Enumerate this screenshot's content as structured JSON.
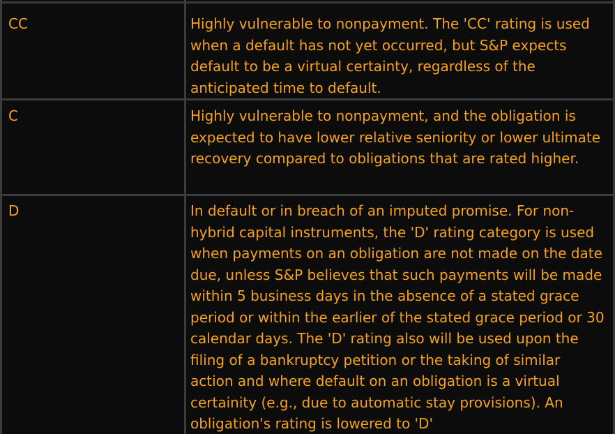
{
  "rating_table": {
    "rows": [
      {
        "code": "CC",
        "description": "Highly vulnerable to nonpayment. The 'CC' rating is used when a default has not yet occurred, but S&P expects default to be a virtual certainty, regardless of the anticipated time to default."
      },
      {
        "code": "C",
        "description": "Highly vulnerable to nonpayment, and the obligation is expected to have lower relative seniority or lower ultimate recovery compared to obligations that are rated higher."
      },
      {
        "code": "D",
        "description": "In default or in breach of an imputed promise. For non-hybrid capital instruments, the 'D' rating category is used when payments on an obligation are not made on the date due, unless S&P believes that such payments will be made within 5 business days in the absence of a stated grace period or within the earlier of the stated grace period or 30 calendar days. The 'D' rating also will be used upon the filing of a bankruptcy petition or the taking of similar action and where default on an obligation is a virtual certainity (e.g., due to automatic stay provisions). An obligation's rating is lowered to 'D'"
      }
    ]
  },
  "colors": {
    "text": "#f6a21a",
    "background": "#000000",
    "cell_background": "#0c0c0c",
    "border": "#3c3c3c"
  }
}
